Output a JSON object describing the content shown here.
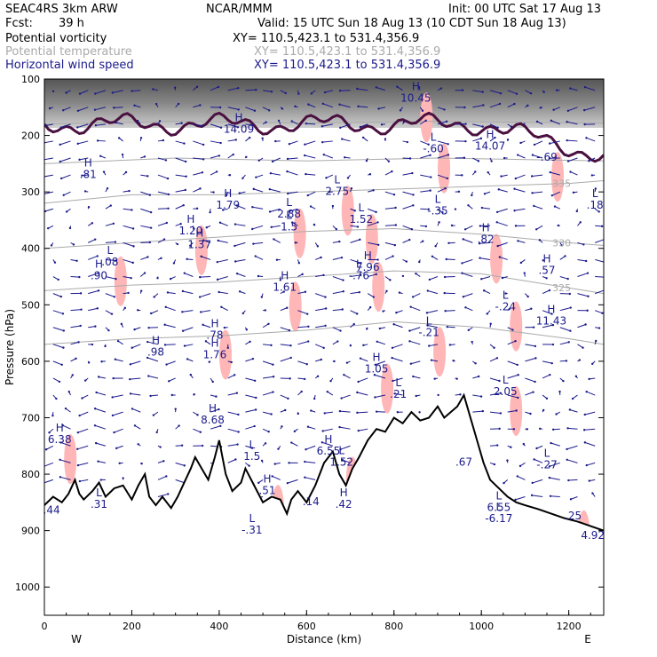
{
  "header": {
    "model": "SEAC4RS  3km ARW",
    "org": "NCAR/MMM",
    "init": "Init: 00 UTC Sat 17 Aug 13",
    "fcst_label": "Fcst:",
    "fcst_value": "39 h",
    "valid": "Valid: 15 UTC Sun 18 Aug 13 (10 CDT Sun 18 Aug 13)",
    "fields": [
      {
        "name": "Potential vorticity",
        "xy": "XY= 110.5,423.1 to 531.4,356.9"
      },
      {
        "name": "Potential temperature",
        "xy": "XY= 110.5,423.1 to 531.4,356.9"
      },
      {
        "name": "Horizontal wind speed",
        "xy": "XY= 110.5,423.1 to 531.4,356.9"
      }
    ]
  },
  "colors": {
    "pv": "#000000",
    "theta": "#aaaaaa",
    "wind": "#1a1a8c",
    "terrain": "#000000",
    "dynamic_tropopause": "#4a1040",
    "pv_shading": "#ffb6b6"
  },
  "chart_data": {
    "type": "cross-section",
    "xlabel": "Distance (km)",
    "ylabel": "Pressure (hPa)",
    "xlim": [
      0,
      1280
    ],
    "ylim": [
      1050,
      100
    ],
    "x_ticks": [
      0,
      200,
      400,
      600,
      800,
      1000,
      1200
    ],
    "y_ticks": [
      100,
      200,
      300,
      400,
      500,
      600,
      700,
      800,
      900,
      1000
    ],
    "endpoints": {
      "left": "W",
      "right": "E"
    },
    "terrain": [
      [
        0,
        855
      ],
      [
        20,
        840
      ],
      [
        40,
        850
      ],
      [
        55,
        835
      ],
      [
        70,
        810
      ],
      [
        80,
        835
      ],
      [
        90,
        845
      ],
      [
        110,
        830
      ],
      [
        125,
        815
      ],
      [
        140,
        840
      ],
      [
        160,
        825
      ],
      [
        180,
        820
      ],
      [
        200,
        845
      ],
      [
        215,
        820
      ],
      [
        230,
        800
      ],
      [
        240,
        840
      ],
      [
        255,
        855
      ],
      [
        270,
        840
      ],
      [
        290,
        860
      ],
      [
        305,
        840
      ],
      [
        320,
        815
      ],
      [
        335,
        790
      ],
      [
        345,
        770
      ],
      [
        360,
        790
      ],
      [
        375,
        810
      ],
      [
        390,
        770
      ],
      [
        400,
        740
      ],
      [
        415,
        800
      ],
      [
        430,
        830
      ],
      [
        450,
        815
      ],
      [
        460,
        790
      ],
      [
        480,
        820
      ],
      [
        500,
        850
      ],
      [
        520,
        840
      ],
      [
        540,
        845
      ],
      [
        555,
        870
      ],
      [
        565,
        845
      ],
      [
        580,
        830
      ],
      [
        600,
        850
      ],
      [
        620,
        820
      ],
      [
        640,
        780
      ],
      [
        660,
        760
      ],
      [
        675,
        800
      ],
      [
        690,
        820
      ],
      [
        705,
        790
      ],
      [
        720,
        770
      ],
      [
        740,
        740
      ],
      [
        760,
        720
      ],
      [
        780,
        725
      ],
      [
        800,
        700
      ],
      [
        820,
        710
      ],
      [
        840,
        690
      ],
      [
        860,
        705
      ],
      [
        880,
        700
      ],
      [
        900,
        680
      ],
      [
        915,
        700
      ],
      [
        930,
        690
      ],
      [
        945,
        680
      ],
      [
        960,
        660
      ],
      [
        975,
        700
      ],
      [
        990,
        740
      ],
      [
        1005,
        780
      ],
      [
        1020,
        810
      ],
      [
        1040,
        825
      ],
      [
        1060,
        840
      ],
      [
        1080,
        850
      ],
      [
        1100,
        855
      ],
      [
        1130,
        862
      ],
      [
        1160,
        870
      ],
      [
        1190,
        878
      ],
      [
        1220,
        884
      ],
      [
        1250,
        892
      ],
      [
        1280,
        900
      ]
    ],
    "theta_contours": [
      {
        "label": "335",
        "points": [
          [
            0,
            320
          ],
          [
            200,
            305
          ],
          [
            400,
            305
          ],
          [
            600,
            300
          ],
          [
            800,
            295
          ],
          [
            1000,
            290
          ],
          [
            1200,
            285
          ],
          [
            1280,
            280
          ]
        ]
      },
      {
        "label": "330",
        "points": [
          [
            0,
            400
          ],
          [
            200,
            390
          ],
          [
            400,
            380
          ],
          [
            600,
            370
          ],
          [
            800,
            365
          ],
          [
            1000,
            375
          ],
          [
            1200,
            390
          ],
          [
            1280,
            395
          ]
        ]
      },
      {
        "label": "325",
        "points": [
          [
            0,
            475
          ],
          [
            200,
            465
          ],
          [
            400,
            460
          ],
          [
            600,
            450
          ],
          [
            800,
            440
          ],
          [
            1000,
            445
          ],
          [
            1200,
            470
          ],
          [
            1280,
            480
          ]
        ]
      },
      {
        "points": [
          [
            0,
            570
          ],
          [
            200,
            560
          ],
          [
            400,
            555
          ],
          [
            600,
            545
          ],
          [
            800,
            530
          ],
          [
            1000,
            540
          ],
          [
            1200,
            560
          ],
          [
            1280,
            570
          ]
        ]
      },
      {
        "points": [
          [
            0,
            180
          ],
          [
            300,
            175
          ],
          [
            600,
            178
          ],
          [
            900,
            175
          ],
          [
            1280,
            178
          ]
        ]
      },
      {
        "points": [
          [
            0,
            250
          ],
          [
            300,
            240
          ],
          [
            600,
            245
          ],
          [
            900,
            240
          ],
          [
            1280,
            245
          ]
        ]
      }
    ],
    "extrema": [
      {
        "type": "H",
        "value": "10.45",
        "x": 850,
        "y": 140
      },
      {
        "type": "H",
        "value": "14.09",
        "x": 445,
        "y": 195
      },
      {
        "type": "L",
        "value": "-.60",
        "x": 890,
        "y": 230
      },
      {
        "type": "H",
        "value": "14.07",
        "x": 1020,
        "y": 225
      },
      {
        "type": "-",
        "value": "-.69",
        "x": 1150,
        "y": 245
      },
      {
        "type": "H",
        "value": ".81",
        "x": 100,
        "y": 275
      },
      {
        "type": "L",
        "value": "2.75",
        "x": 670,
        "y": 305
      },
      {
        "type": "H",
        "value": "1.79",
        "x": 420,
        "y": 330
      },
      {
        "type": "L",
        "value": "2.88",
        "x": 560,
        "y": 345
      },
      {
        "type": "L",
        "value": "1.5",
        "x": 560,
        "y": 368
      },
      {
        "type": "L",
        "value": "1.52",
        "x": 725,
        "y": 355
      },
      {
        "type": "L",
        "value": "-.35",
        "x": 900,
        "y": 340
      },
      {
        "type": "H",
        "value": "1.20",
        "x": 335,
        "y": 375
      },
      {
        "type": "H",
        "value": "1.37",
        "x": 355,
        "y": 400
      },
      {
        "type": "H",
        "value": ".82",
        "x": 1010,
        "y": 390
      },
      {
        "type": "L",
        "value": ".18",
        "x": 1260,
        "y": 330
      },
      {
        "type": "L",
        "value": ".08",
        "x": 150,
        "y": 430
      },
      {
        "type": "H",
        "value": ".90",
        "x": 125,
        "y": 455
      },
      {
        "type": "H",
        "value": "1.61",
        "x": 550,
        "y": 475
      },
      {
        "type": "L",
        "value": "-.76",
        "x": 720,
        "y": 455
      },
      {
        "type": "H",
        "value": "7.96",
        "x": 740,
        "y": 440
      },
      {
        "type": "H",
        "value": ".57",
        "x": 1150,
        "y": 445
      },
      {
        "type": "L",
        "value": "-.24",
        "x": 1055,
        "y": 510
      },
      {
        "type": "H",
        "value": "11.43",
        "x": 1160,
        "y": 535
      },
      {
        "type": "L",
        "value": "-.21",
        "x": 880,
        "y": 555
      },
      {
        "type": "H",
        "value": ".98",
        "x": 255,
        "y": 590
      },
      {
        "type": "H",
        "value": ".78",
        "x": 390,
        "y": 560
      },
      {
        "type": "H",
        "value": "1.76",
        "x": 390,
        "y": 595
      },
      {
        "type": "H",
        "value": "1.05",
        "x": 760,
        "y": 620
      },
      {
        "type": "L",
        "value": ".21",
        "x": 810,
        "y": 665
      },
      {
        "type": "L",
        "value": "2.05",
        "x": 1055,
        "y": 660
      },
      {
        "type": "H",
        "value": "8.68",
        "x": 385,
        "y": 710
      },
      {
        "type": "H",
        "value": "6.38",
        "x": 35,
        "y": 745
      },
      {
        "type": "H",
        "value": "6.55",
        "x": 650,
        "y": 765
      },
      {
        "type": "L",
        "value": "1.52",
        "x": 680,
        "y": 785
      },
      {
        "type": "L",
        "value": "1.5",
        "x": 475,
        "y": 775
      },
      {
        "type": "-",
        "value": ".67",
        "x": 960,
        "y": 785
      },
      {
        "type": "L",
        "value": "-.27",
        "x": 1150,
        "y": 790
      },
      {
        "type": "H",
        "value": ".51",
        "x": 510,
        "y": 835
      },
      {
        "type": "-",
        "value": ".14",
        "x": 610,
        "y": 855
      },
      {
        "type": "H",
        "value": ".42",
        "x": 685,
        "y": 860
      },
      {
        "type": "-",
        "value": "-.44",
        "x": 12,
        "y": 870
      },
      {
        "type": "L",
        "value": ".31",
        "x": 125,
        "y": 860
      },
      {
        "type": "L",
        "value": "-.31",
        "x": 475,
        "y": 905
      },
      {
        "type": "L",
        "value": "6.55",
        "x": 1040,
        "y": 865
      },
      {
        "type": "L",
        "value": "-6.17",
        "x": 1040,
        "y": 885
      },
      {
        "type": "-",
        "value": ".25",
        "x": 1210,
        "y": 880
      },
      {
        "type": "-",
        "value": "4.92",
        "x": 1255,
        "y": 915
      }
    ]
  }
}
